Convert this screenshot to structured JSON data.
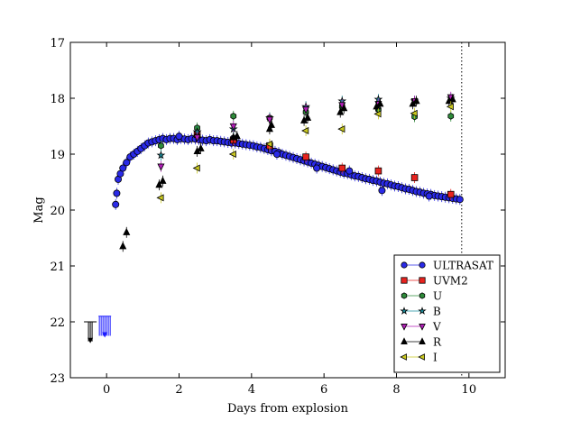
{
  "chart_data": {
    "type": "scatter",
    "xlabel": "Days from explosion",
    "ylabel": "Mag",
    "xlim": [
      -1,
      11
    ],
    "ylim": [
      23,
      17
    ],
    "y_inverted": true,
    "xticks": [
      0,
      2,
      4,
      6,
      8,
      10
    ],
    "yticks": [
      17,
      18,
      19,
      20,
      21,
      22,
      23
    ],
    "xtick_labels": [
      "0",
      "2",
      "4",
      "6",
      "8",
      "10"
    ],
    "ytick_labels": [
      "17",
      "18",
      "19",
      "20",
      "21",
      "22",
      "23"
    ],
    "vline_x": 9.8,
    "legend_position": "lower-right",
    "upper_limits": [
      {
        "series": "R",
        "x": -0.45,
        "mag": 22.35,
        "color": "#000000"
      },
      {
        "series": "ULTRASAT",
        "x": -0.05,
        "mag": 22.25,
        "color": "#1a1aff"
      }
    ],
    "series": [
      {
        "name": "ULTRASAT",
        "marker": "circle",
        "color": "#2a2ae8",
        "points": [
          [
            0.25,
            19.9
          ],
          [
            0.28,
            19.7
          ],
          [
            0.32,
            19.45
          ],
          [
            0.38,
            19.35
          ],
          [
            0.45,
            19.25
          ],
          [
            0.55,
            19.15
          ],
          [
            0.65,
            19.05
          ],
          [
            0.75,
            19.0
          ],
          [
            0.85,
            18.95
          ],
          [
            0.95,
            18.9
          ],
          [
            1.05,
            18.85
          ],
          [
            1.15,
            18.8
          ],
          [
            1.25,
            18.78
          ],
          [
            1.35,
            18.76
          ],
          [
            1.45,
            18.74
          ],
          [
            1.55,
            18.72
          ],
          [
            1.65,
            18.74
          ],
          [
            1.75,
            18.72
          ],
          [
            1.85,
            18.72
          ],
          [
            1.95,
            18.74
          ],
          [
            2.05,
            18.72
          ],
          [
            2.15,
            18.73
          ],
          [
            2.25,
            18.74
          ],
          [
            2.35,
            18.72
          ],
          [
            2.45,
            18.73
          ],
          [
            2.55,
            18.74
          ],
          [
            2.65,
            18.75
          ],
          [
            2.75,
            18.76
          ],
          [
            2.85,
            18.74
          ],
          [
            2.95,
            18.76
          ],
          [
            3.05,
            18.76
          ],
          [
            3.15,
            18.77
          ],
          [
            3.25,
            18.78
          ],
          [
            3.35,
            18.79
          ],
          [
            3.45,
            18.8
          ],
          [
            3.55,
            18.8
          ],
          [
            3.65,
            18.81
          ],
          [
            3.75,
            18.82
          ],
          [
            3.85,
            18.83
          ],
          [
            3.95,
            18.84
          ],
          [
            4.05,
            18.85
          ],
          [
            4.15,
            18.87
          ],
          [
            4.25,
            18.88
          ],
          [
            4.35,
            18.9
          ],
          [
            4.45,
            18.92
          ],
          [
            4.55,
            18.94
          ],
          [
            4.65,
            18.95
          ],
          [
            4.75,
            18.97
          ],
          [
            4.85,
            19.0
          ],
          [
            4.95,
            19.02
          ],
          [
            5.05,
            19.04
          ],
          [
            5.15,
            19.06
          ],
          [
            5.25,
            19.08
          ],
          [
            5.35,
            19.1
          ],
          [
            5.45,
            19.12
          ],
          [
            5.55,
            19.14
          ],
          [
            5.65,
            19.16
          ],
          [
            5.75,
            19.18
          ],
          [
            5.85,
            19.2
          ],
          [
            5.95,
            19.22
          ],
          [
            6.05,
            19.24
          ],
          [
            6.15,
            19.26
          ],
          [
            6.25,
            19.28
          ],
          [
            6.35,
            19.3
          ],
          [
            6.45,
            19.32
          ],
          [
            6.55,
            19.34
          ],
          [
            6.65,
            19.35
          ],
          [
            6.75,
            19.37
          ],
          [
            6.85,
            19.39
          ],
          [
            6.95,
            19.4
          ],
          [
            7.05,
            19.42
          ],
          [
            7.15,
            19.44
          ],
          [
            7.25,
            19.45
          ],
          [
            7.35,
            19.47
          ],
          [
            7.45,
            19.48
          ],
          [
            7.55,
            19.5
          ],
          [
            7.65,
            19.52
          ],
          [
            7.75,
            19.53
          ],
          [
            7.85,
            19.55
          ],
          [
            7.95,
            19.57
          ],
          [
            8.05,
            19.58
          ],
          [
            8.15,
            19.6
          ],
          [
            8.25,
            19.62
          ],
          [
            8.35,
            19.63
          ],
          [
            8.45,
            19.65
          ],
          [
            8.55,
            19.67
          ],
          [
            8.65,
            19.68
          ],
          [
            8.75,
            19.7
          ],
          [
            8.85,
            19.71
          ],
          [
            8.95,
            19.72
          ],
          [
            9.05,
            19.74
          ],
          [
            9.15,
            19.75
          ],
          [
            9.25,
            19.76
          ],
          [
            9.35,
            19.77
          ],
          [
            9.45,
            19.78
          ],
          [
            9.55,
            19.79
          ],
          [
            9.65,
            19.8
          ],
          [
            9.75,
            19.81
          ],
          [
            7.6,
            19.65
          ],
          [
            8.9,
            19.75
          ],
          [
            2.0,
            18.68
          ],
          [
            3.5,
            18.72
          ],
          [
            4.7,
            19.0
          ],
          [
            5.8,
            19.25
          ],
          [
            6.7,
            19.3
          ]
        ]
      },
      {
        "name": "UVM2",
        "marker": "square",
        "color": "#e8231f",
        "points": [
          [
            2.5,
            18.65
          ],
          [
            3.5,
            18.75
          ],
          [
            4.5,
            18.85
          ],
          [
            5.5,
            19.05
          ],
          [
            6.5,
            19.25
          ],
          [
            7.5,
            19.3
          ],
          [
            8.5,
            19.42
          ],
          [
            9.5,
            19.72
          ]
        ]
      },
      {
        "name": "U",
        "marker": "hexagon",
        "color": "#2e8b3a",
        "points": [
          [
            1.5,
            18.85
          ],
          [
            2.5,
            18.53
          ],
          [
            3.5,
            18.32
          ],
          [
            4.5,
            18.35
          ],
          [
            5.5,
            18.25
          ],
          [
            6.5,
            18.15
          ],
          [
            7.5,
            18.2
          ],
          [
            8.5,
            18.33
          ],
          [
            9.5,
            18.32
          ]
        ]
      },
      {
        "name": "B",
        "marker": "star",
        "color": "#1a8f9f",
        "points": [
          [
            1.5,
            19.02
          ],
          [
            2.5,
            18.6
          ],
          [
            3.5,
            18.55
          ],
          [
            4.5,
            18.35
          ],
          [
            5.5,
            18.15
          ],
          [
            6.5,
            18.05
          ],
          [
            7.5,
            18.02
          ],
          [
            8.5,
            18.05
          ],
          [
            9.5,
            18.0
          ]
        ]
      },
      {
        "name": "V",
        "marker": "triangle-down",
        "color": "#b21fb8",
        "points": [
          [
            1.5,
            19.22
          ],
          [
            2.5,
            18.7
          ],
          [
            3.5,
            18.5
          ],
          [
            4.5,
            18.38
          ],
          [
            5.5,
            18.2
          ],
          [
            6.5,
            18.12
          ],
          [
            7.5,
            18.1
          ],
          [
            8.5,
            18.05
          ],
          [
            9.5,
            17.98
          ]
        ]
      },
      {
        "name": "R",
        "marker": "triangle-up",
        "color": "#000000",
        "points": [
          [
            0.45,
            20.65
          ],
          [
            0.55,
            20.4
          ],
          [
            1.45,
            19.55
          ],
          [
            1.55,
            19.48
          ],
          [
            2.5,
            18.95
          ],
          [
            2.6,
            18.9
          ],
          [
            3.5,
            18.7
          ],
          [
            3.6,
            18.68
          ],
          [
            4.5,
            18.55
          ],
          [
            4.55,
            18.48
          ],
          [
            5.45,
            18.4
          ],
          [
            5.55,
            18.35
          ],
          [
            6.45,
            18.25
          ],
          [
            6.55,
            18.18
          ],
          [
            7.45,
            18.15
          ],
          [
            7.55,
            18.1
          ],
          [
            8.45,
            18.1
          ],
          [
            8.55,
            18.05
          ],
          [
            9.45,
            18.05
          ],
          [
            9.55,
            18.02
          ]
        ]
      },
      {
        "name": "I",
        "marker": "triangle-left",
        "color": "#c9c81f",
        "points": [
          [
            1.5,
            19.78
          ],
          [
            2.5,
            19.25
          ],
          [
            3.5,
            19.0
          ],
          [
            4.5,
            18.82
          ],
          [
            5.5,
            18.58
          ],
          [
            6.5,
            18.55
          ],
          [
            7.5,
            18.28
          ],
          [
            8.5,
            18.27
          ],
          [
            9.5,
            18.15
          ]
        ]
      }
    ]
  }
}
